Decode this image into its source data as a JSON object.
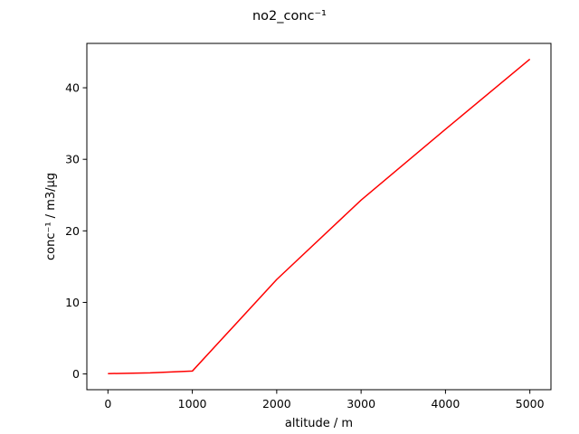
{
  "chart_data": {
    "type": "line",
    "title": "no2_conc⁻¹",
    "xlabel": "altitude / m",
    "ylabel": "conc⁻¹ / m3/µg",
    "xlim": [
      -250,
      5250
    ],
    "ylim": [
      -2.2,
      46.2
    ],
    "xticks": [
      0,
      1000,
      2000,
      3000,
      4000,
      5000
    ],
    "yticks": [
      0,
      10,
      20,
      30,
      40
    ],
    "grid": false,
    "series": [
      {
        "color": "#ff0000",
        "x": [
          0,
          500,
          1000,
          2000,
          3000,
          4000,
          5000
        ],
        "y": [
          0.05,
          0.15,
          0.4,
          13.2,
          24.3,
          34.2,
          44.0
        ]
      }
    ]
  }
}
